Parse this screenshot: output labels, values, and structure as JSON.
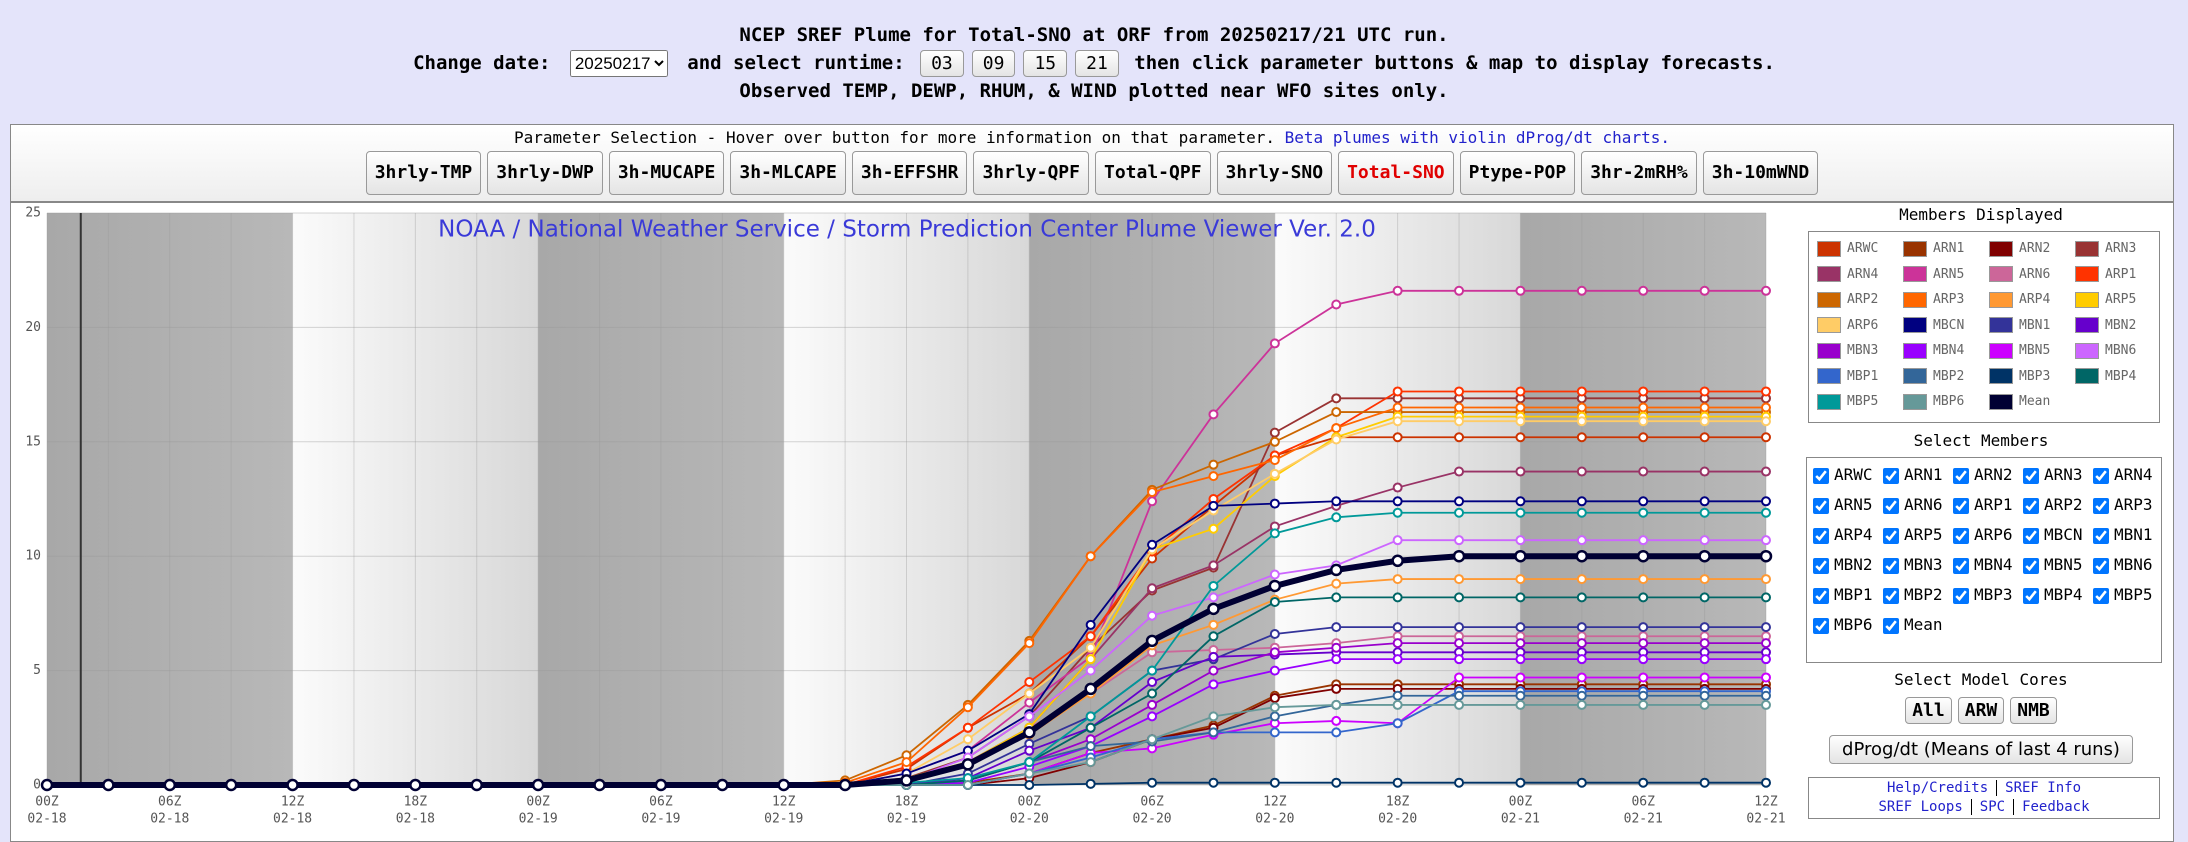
{
  "header": {
    "title": "NCEP SREF Plume for Total-SNO at ORF from 20250217/21 UTC run.",
    "change_date_label": "Change date:",
    "date_options": [
      "20250217"
    ],
    "runtime_label": "and select runtime:",
    "runtimes": [
      "03",
      "09",
      "15",
      "21"
    ],
    "instructions": "then click parameter buttons & map to display forecasts.",
    "note": "Observed TEMP, DEWP, RHUM, & WIND plotted near WFO sites only."
  },
  "parameters": {
    "heading": "Parameter Selection - Hover over button for more information on that parameter.",
    "beta_link": "Beta plumes with violin dProg/dt charts.",
    "buttons": [
      "3hrly-TMP",
      "3hrly-DWP",
      "3h-MUCAPE",
      "3h-MLCAPE",
      "3h-EFFSHR",
      "3hrly-QPF",
      "Total-QPF",
      "3hrly-SNO",
      "Total-SNO",
      "Ptype-POP",
      "3hr-2mRH%",
      "3h-10mWND"
    ],
    "selected": "Total-SNO"
  },
  "sidebar": {
    "members_heading": "Members Displayed",
    "select_heading": "Select Members",
    "cores_heading": "Select Model Cores",
    "cores": [
      "All",
      "ARW",
      "NMB"
    ],
    "dprog": "dProg/dt (Means of last 4 runs)",
    "links": [
      [
        "Help/Credits",
        "SREF Info"
      ],
      [
        "SREF Loops",
        "SPC",
        "Feedback"
      ]
    ]
  },
  "chart_data": {
    "type": "line",
    "title": "NOAA / National Weather Service / Storm Prediction Center Plume Viewer Ver. 2.0",
    "categories": [
      "00Z",
      null,
      "06Z",
      null,
      "12Z",
      null,
      "18Z",
      null,
      "00Z",
      null,
      "06Z",
      null,
      "12Z",
      null,
      "18Z",
      null,
      "00Z",
      null,
      "06Z",
      null,
      "12Z",
      null,
      "18Z",
      null,
      "00Z",
      null,
      "06Z",
      null,
      "12Z"
    ],
    "category_dates": [
      "02-18",
      null,
      "02-18",
      null,
      "02-18",
      null,
      "02-18",
      null,
      "02-19",
      null,
      "02-19",
      null,
      "02-19",
      null,
      "02-19",
      null,
      "02-20",
      null,
      "02-20",
      null,
      "02-20",
      null,
      "02-20",
      null,
      "02-21",
      null,
      "02-21",
      null,
      "02-21"
    ],
    "ylim": [
      0,
      25
    ],
    "yticks": [
      0,
      5,
      10,
      15,
      20,
      25
    ],
    "grid": true,
    "series": [
      {
        "name": "ARWC",
        "color": "#cc3300",
        "values": [
          0,
          0,
          0,
          0,
          0,
          0,
          0,
          0,
          0,
          0,
          0,
          0,
          0,
          0,
          0.7,
          2.5,
          4.0,
          6.5,
          9.9,
          12.2,
          14.4,
          15.2,
          15.2,
          15.2,
          15.2,
          15.2,
          15.2,
          15.2,
          15.2
        ]
      },
      {
        "name": "ARN1",
        "color": "#993300",
        "values": [
          0,
          0,
          0,
          0,
          0,
          0,
          0,
          0,
          0,
          0,
          0,
          0,
          0,
          0,
          0,
          0.1,
          0.5,
          1.4,
          2.0,
          2.6,
          3.9,
          4.4,
          4.4,
          4.4,
          4.4,
          4.4,
          4.4,
          4.4,
          4.4
        ]
      },
      {
        "name": "ARN2",
        "color": "#800000",
        "values": [
          0,
          0,
          0,
          0,
          0,
          0,
          0,
          0,
          0,
          0,
          0,
          0,
          0,
          0,
          0,
          0,
          0.3,
          1.0,
          2.0,
          2.5,
          3.8,
          4.2,
          4.2,
          4.2,
          4.2,
          4.2,
          4.2,
          4.2,
          4.2
        ]
      },
      {
        "name": "ARN3",
        "color": "#993333",
        "values": [
          0,
          0,
          0,
          0,
          0,
          0,
          0,
          0,
          0,
          0,
          0,
          0,
          0,
          0,
          0.3,
          1.2,
          3.0,
          6.0,
          8.5,
          9.5,
          15.4,
          16.9,
          16.9,
          16.9,
          16.9,
          16.9,
          16.9,
          16.9,
          16.9
        ]
      },
      {
        "name": "ARN4",
        "color": "#993366",
        "values": [
          0,
          0,
          0,
          0,
          0,
          0,
          0,
          0,
          0,
          0,
          0,
          0,
          0,
          0,
          0.2,
          1.0,
          2.5,
          5.5,
          8.6,
          9.6,
          11.3,
          12.2,
          13.0,
          13.7,
          13.7,
          13.7,
          13.7,
          13.7,
          13.7
        ]
      },
      {
        "name": "ARN5",
        "color": "#cc3399",
        "values": [
          0,
          0,
          0,
          0,
          0,
          0,
          0,
          0,
          0,
          0,
          0,
          0,
          0,
          0,
          0.5,
          1.5,
          3.6,
          5.6,
          12.4,
          16.2,
          19.3,
          21.0,
          21.6,
          21.6,
          21.6,
          21.6,
          21.6,
          21.6,
          21.6
        ]
      },
      {
        "name": "ARN6",
        "color": "#cc6699",
        "values": [
          0,
          0,
          0,
          0,
          0,
          0,
          0,
          0,
          0,
          0,
          0,
          0,
          0,
          0,
          0.1,
          1.0,
          2.5,
          4.0,
          5.8,
          5.9,
          6.0,
          6.2,
          6.5,
          6.5,
          6.5,
          6.5,
          6.5,
          6.5,
          6.5
        ]
      },
      {
        "name": "ARP1",
        "color": "#ff3300",
        "values": [
          0,
          0,
          0,
          0,
          0,
          0,
          0,
          0,
          0,
          0,
          0,
          0,
          0,
          0,
          0.8,
          2.5,
          4.5,
          6.5,
          10.2,
          12.5,
          14.4,
          15.6,
          17.2,
          17.2,
          17.2,
          17.2,
          17.2,
          17.2,
          17.2
        ]
      },
      {
        "name": "ARP2",
        "color": "#cc6600",
        "values": [
          0,
          0,
          0,
          0,
          0,
          0,
          0,
          0,
          0,
          0,
          0,
          0,
          0,
          0.2,
          1.3,
          3.5,
          6.3,
          10.0,
          12.9,
          14.0,
          15.0,
          16.3,
          16.3,
          16.3,
          16.3,
          16.3,
          16.3,
          16.3,
          16.3
        ]
      },
      {
        "name": "ARP3",
        "color": "#ff6600",
        "values": [
          0,
          0,
          0,
          0,
          0,
          0,
          0,
          0,
          0,
          0,
          0,
          0,
          0,
          0.1,
          1.0,
          3.4,
          6.2,
          10.0,
          12.8,
          13.5,
          14.2,
          15.6,
          16.5,
          16.5,
          16.5,
          16.5,
          16.5,
          16.5,
          16.5
        ]
      },
      {
        "name": "ARP4",
        "color": "#ff9933",
        "values": [
          0,
          0,
          0,
          0,
          0,
          0,
          0,
          0,
          0,
          0,
          0,
          0,
          0,
          0,
          0.2,
          1.0,
          2.2,
          4.0,
          6.1,
          7.0,
          8.1,
          8.8,
          9.0,
          9.0,
          9.0,
          9.0,
          9.0,
          9.0,
          9.0
        ]
      },
      {
        "name": "ARP5",
        "color": "#ffcc00",
        "values": [
          0,
          0,
          0,
          0,
          0,
          0,
          0,
          0,
          0,
          0,
          0,
          0,
          0,
          0,
          0.3,
          1.0,
          2.5,
          5.5,
          10.3,
          11.2,
          13.5,
          15.2,
          16.1,
          16.1,
          16.1,
          16.1,
          16.1,
          16.1,
          16.1
        ]
      },
      {
        "name": "ARP6",
        "color": "#ffcc66",
        "values": [
          0,
          0,
          0,
          0,
          0,
          0,
          0,
          0,
          0,
          0,
          0,
          0,
          0,
          0,
          0.5,
          2.0,
          4.0,
          6.0,
          10.3,
          12.0,
          13.6,
          15.1,
          15.9,
          15.9,
          15.9,
          15.9,
          15.9,
          15.9,
          15.9
        ]
      },
      {
        "name": "MBCN",
        "color": "#000080",
        "values": [
          0,
          0,
          0,
          0,
          0,
          0,
          0,
          0,
          0,
          0,
          0,
          0,
          0,
          0,
          0.5,
          1.5,
          3.1,
          7.0,
          10.5,
          12.2,
          12.3,
          12.4,
          12.4,
          12.4,
          12.4,
          12.4,
          12.4,
          12.4,
          12.4
        ]
      },
      {
        "name": "MBN1",
        "color": "#333399",
        "values": [
          0,
          0,
          0,
          0,
          0,
          0,
          0,
          0,
          0,
          0,
          0,
          0,
          0,
          0,
          0,
          0.5,
          1.8,
          3.0,
          5.0,
          5.5,
          6.6,
          6.9,
          6.9,
          6.9,
          6.9,
          6.9,
          6.9,
          6.9,
          6.9
        ]
      },
      {
        "name": "MBN2",
        "color": "#6600cc",
        "values": [
          0,
          0,
          0,
          0,
          0,
          0,
          0,
          0,
          0,
          0,
          0,
          0,
          0,
          0,
          0,
          0.3,
          1.5,
          2.5,
          4.5,
          5.6,
          5.7,
          5.8,
          5.8,
          5.8,
          5.8,
          5.8,
          5.8,
          5.8,
          5.8
        ]
      },
      {
        "name": "MBN3",
        "color": "#9900cc",
        "values": [
          0,
          0,
          0,
          0,
          0,
          0,
          0,
          0,
          0,
          0,
          0,
          0,
          0,
          0,
          0,
          0.2,
          1.0,
          2.0,
          3.5,
          5.0,
          5.8,
          6.0,
          6.2,
          6.2,
          6.2,
          6.2,
          6.2,
          6.2,
          6.2
        ]
      },
      {
        "name": "MBN4",
        "color": "#9900ff",
        "values": [
          0,
          0,
          0,
          0,
          0,
          0,
          0,
          0,
          0,
          0,
          0,
          0,
          0,
          0,
          0,
          0.1,
          0.8,
          1.7,
          3.0,
          4.4,
          5.0,
          5.5,
          5.5,
          5.5,
          5.5,
          5.5,
          5.5,
          5.5,
          5.5
        ]
      },
      {
        "name": "MBN5",
        "color": "#cc00ff",
        "values": [
          0,
          0,
          0,
          0,
          0,
          0,
          0,
          0,
          0,
          0,
          0,
          0,
          0,
          0,
          0,
          0,
          0.5,
          1.4,
          1.6,
          2.2,
          2.7,
          2.8,
          2.7,
          4.7,
          4.7,
          4.7,
          4.7,
          4.7,
          4.7
        ]
      },
      {
        "name": "MBN6",
        "color": "#cc66ff",
        "values": [
          0,
          0,
          0,
          0,
          0,
          0,
          0,
          0,
          0,
          0,
          0,
          0,
          0,
          0,
          0.2,
          1.2,
          3.0,
          5.0,
          7.4,
          8.2,
          9.2,
          9.6,
          10.7,
          10.7,
          10.7,
          10.7,
          10.7,
          10.7,
          10.7
        ]
      },
      {
        "name": "MBP1",
        "color": "#3366cc",
        "values": [
          0,
          0,
          0,
          0,
          0,
          0,
          0,
          0,
          0,
          0,
          0,
          0,
          0,
          0,
          0,
          0,
          0.5,
          1.2,
          2.0,
          2.3,
          2.3,
          2.3,
          2.7,
          4.1,
          4.1,
          4.1,
          4.1,
          4.1,
          4.1
        ]
      },
      {
        "name": "MBP2",
        "color": "#336699",
        "values": [
          0,
          0,
          0,
          0,
          0,
          0,
          0,
          0,
          0,
          0,
          0,
          0,
          0,
          0,
          0,
          0.2,
          1.0,
          1.7,
          1.9,
          2.3,
          3.0,
          3.5,
          3.9,
          3.9,
          3.9,
          3.9,
          3.9,
          3.9,
          3.9
        ]
      },
      {
        "name": "MBP3",
        "color": "#003366",
        "values": [
          0,
          0,
          0,
          0,
          0,
          0,
          0,
          0,
          0,
          0,
          0,
          0,
          0,
          0,
          0,
          0,
          0,
          0.05,
          0.1,
          0.1,
          0.1,
          0.1,
          0.1,
          0.1,
          0.1,
          0.1,
          0.1,
          0.1,
          0.1
        ]
      },
      {
        "name": "MBP4",
        "color": "#006666",
        "values": [
          0,
          0,
          0,
          0,
          0,
          0,
          0,
          0,
          0,
          0,
          0,
          0,
          0,
          0,
          0,
          0.2,
          1.0,
          2.5,
          4.0,
          6.5,
          8.0,
          8.2,
          8.2,
          8.2,
          8.2,
          8.2,
          8.2,
          8.2,
          8.2
        ]
      },
      {
        "name": "MBP5",
        "color": "#009999",
        "values": [
          0,
          0,
          0,
          0,
          0,
          0,
          0,
          0,
          0,
          0,
          0,
          0,
          0,
          0,
          0.1,
          0.3,
          1.0,
          3.0,
          5.0,
          8.7,
          11.0,
          11.7,
          11.9,
          11.9,
          11.9,
          11.9,
          11.9,
          11.9,
          11.9
        ]
      },
      {
        "name": "MBP6",
        "color": "#669999",
        "values": [
          0,
          0,
          0,
          0,
          0,
          0,
          0,
          0,
          0,
          0,
          0,
          0,
          0,
          0,
          0,
          0,
          0.5,
          1.0,
          2.0,
          3.0,
          3.4,
          3.5,
          3.5,
          3.5,
          3.5,
          3.5,
          3.5,
          3.5,
          3.5
        ]
      },
      {
        "name": "Mean",
        "color": "#000033",
        "values": [
          0,
          0,
          0,
          0,
          0,
          0,
          0,
          0,
          0,
          0,
          0,
          0,
          0,
          0,
          0.2,
          0.9,
          2.3,
          4.2,
          6.3,
          7.7,
          8.7,
          9.4,
          9.8,
          10.0,
          10.0,
          10.0,
          10.0,
          10.0,
          10.0
        ]
      }
    ]
  }
}
